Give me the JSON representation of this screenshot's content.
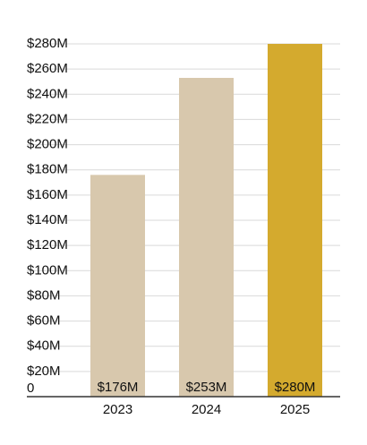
{
  "chart_data": {
    "type": "bar",
    "categories": [
      "2023",
      "2024",
      "2025"
    ],
    "values": [
      176,
      253,
      280
    ],
    "data_labels": [
      "$176M",
      "$253M",
      "$280M"
    ],
    "y_tick_values": [
      0,
      20,
      40,
      60,
      80,
      100,
      120,
      140,
      160,
      180,
      200,
      220,
      240,
      260,
      280
    ],
    "y_tick_labels": [
      "0",
      "$20M",
      "$40M",
      "$60M",
      "$80M",
      "$100M",
      "$120M",
      "$140M",
      "$160M",
      "$180M",
      "$200M",
      "$220M",
      "$240M",
      "$260M",
      "$280M"
    ],
    "ylim": [
      0,
      280
    ],
    "grid": true,
    "bar_colors": [
      "#d8c8ad",
      "#d8c8ad",
      "#d4aa2e"
    ],
    "title": "",
    "xlabel": "",
    "ylabel": ""
  }
}
